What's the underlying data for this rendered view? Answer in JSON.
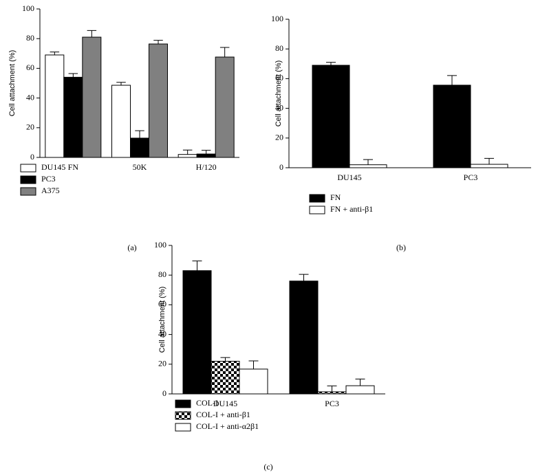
{
  "chart_data": [
    {
      "type": "bar",
      "panel_label": "(a)",
      "ylabel": "Cell attachment (%)",
      "categories": [
        "FN",
        "50K",
        "H/120"
      ],
      "series": [
        {
          "name": "DU145",
          "color": "#ffffff",
          "values": [
            69,
            48.6,
            2
          ],
          "errors": [
            2,
            2,
            3
          ]
        },
        {
          "name": "PC3",
          "color": "#000000",
          "values": [
            54,
            13,
            2.3
          ],
          "errors": [
            2.5,
            5,
            2.5
          ]
        },
        {
          "name": "A375",
          "color": "#808080",
          "values": [
            81,
            76.4,
            67.6
          ],
          "errors": [
            4.5,
            2.5,
            6.5
          ]
        }
      ],
      "ylim": [
        0,
        100
      ],
      "yticks": [
        0,
        20,
        40,
        60,
        80,
        100
      ],
      "legend": "below"
    },
    {
      "type": "bar",
      "panel_label": "(b)",
      "ylabel": "Cell attachment (%)",
      "categories": [
        "DU145",
        "PC3"
      ],
      "series": [
        {
          "name": "FN",
          "color": "#000000",
          "values": [
            69,
            55.6
          ],
          "errors": [
            2,
            6.5
          ]
        },
        {
          "name": "FN + anti-β1",
          "color": "#ffffff",
          "values": [
            2,
            2.3
          ],
          "errors": [
            3.5,
            4
          ]
        }
      ],
      "ylim": [
        0,
        100
      ],
      "yticks": [
        0,
        20,
        40,
        60,
        80,
        100
      ],
      "legend": "below"
    },
    {
      "type": "bar",
      "panel_label": "(c)",
      "ylabel": "Cell attachment (%)",
      "categories": [
        "DU145",
        "PC3"
      ],
      "series": [
        {
          "name": "COL-I",
          "color": "#000000",
          "values": [
            83,
            76
          ],
          "errors": [
            6.5,
            4.5
          ]
        },
        {
          "name": "COL-I + anti-β1",
          "color": "#000000",
          "pattern": "checker",
          "values": [
            22,
            1.4
          ],
          "errors": [
            2.5,
            4
          ]
        },
        {
          "name": "COL-I + anti-α2β1",
          "color": "#ffffff",
          "values": [
            16.7,
            5.5
          ],
          "errors": [
            5.5,
            4.5
          ]
        }
      ],
      "ylim": [
        0,
        100
      ],
      "yticks": [
        0,
        20,
        40,
        60,
        80,
        100
      ],
      "legend": "below"
    }
  ]
}
